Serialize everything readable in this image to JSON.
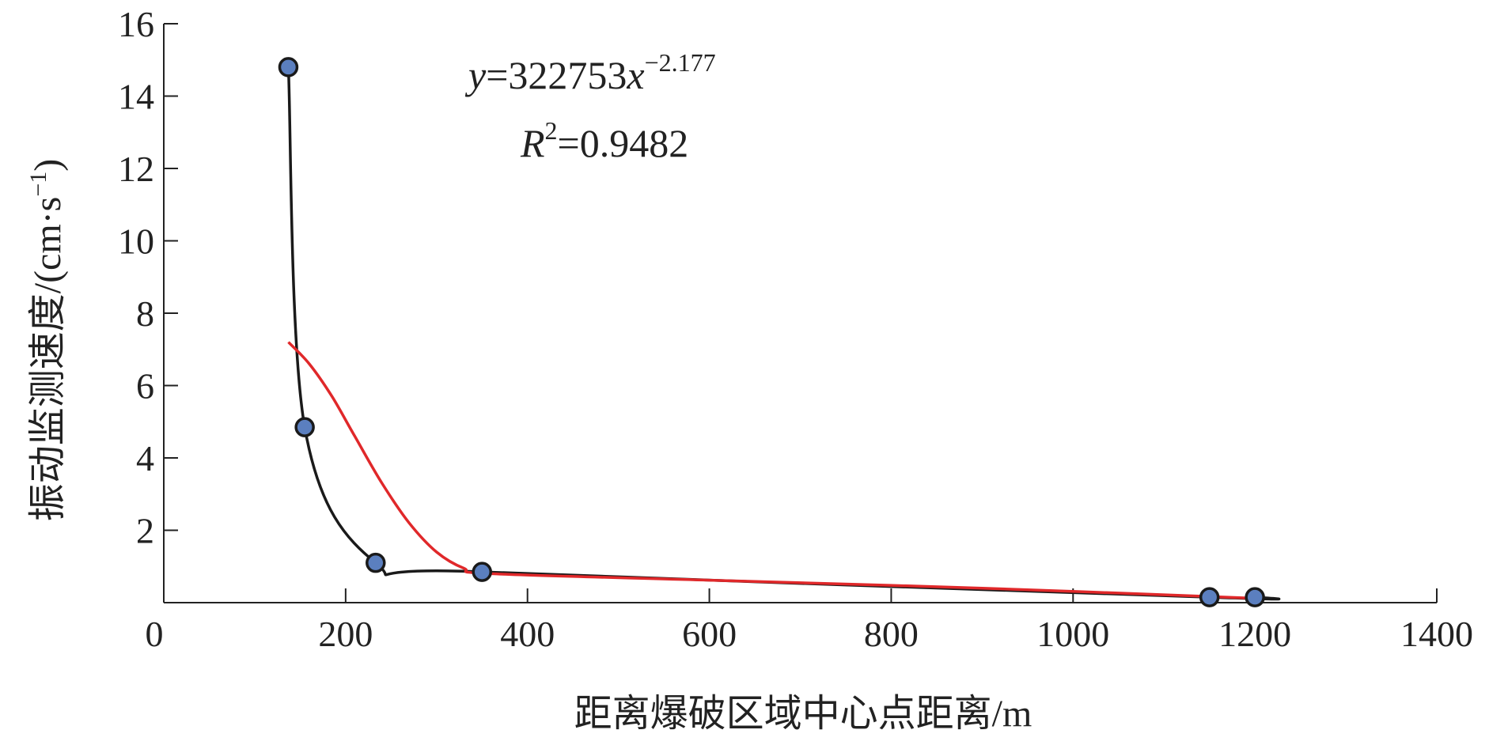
{
  "chart_data": {
    "type": "scatter",
    "xlabel": "距离爆破区域中心点距离/m",
    "ylabel_main": "振动监测速度/(cm·s",
    "ylabel_exp": "−1",
    "ylabel_close": ")",
    "xlim": [
      0,
      1400
    ],
    "ylim": [
      0,
      16
    ],
    "x_ticks": [
      0,
      200,
      400,
      600,
      800,
      1000,
      1200,
      1400
    ],
    "y_ticks": [
      2,
      4,
      6,
      8,
      10,
      12,
      14,
      16
    ],
    "x_tick_labels": [
      "0",
      "200",
      "400",
      "600",
      "800",
      "1000",
      "1200",
      "1400"
    ],
    "y_tick_labels": [
      "2",
      "4",
      "6",
      "8",
      "10",
      "12",
      "14",
      "16"
    ],
    "series": [
      {
        "style": "points-with-smooth-line",
        "points": [
          {
            "x": 137,
            "y": 14.8
          },
          {
            "x": 155,
            "y": 4.85
          },
          {
            "x": 233,
            "y": 1.1
          },
          {
            "x": 350,
            "y": 0.85
          },
          {
            "x": 1150,
            "y": 0.15
          },
          {
            "x": 1200,
            "y": 0.15
          }
        ]
      },
      {
        "style": "fit-line",
        "points": [
          {
            "x": 137,
            "y": 7.2
          },
          {
            "x": 160,
            "y": 6.6
          },
          {
            "x": 185,
            "y": 5.7
          },
          {
            "x": 210,
            "y": 4.6
          },
          {
            "x": 240,
            "y": 3.3
          },
          {
            "x": 270,
            "y": 2.2
          },
          {
            "x": 300,
            "y": 1.4
          },
          {
            "x": 330,
            "y": 0.95
          },
          {
            "x": 360,
            "y": 0.8
          },
          {
            "x": 600,
            "y": 0.62
          },
          {
            "x": 900,
            "y": 0.4
          },
          {
            "x": 1200,
            "y": 0.12
          }
        ]
      }
    ],
    "annotation": {
      "eq_y": "y",
      "eq_mid": "=322753",
      "eq_x": "x",
      "eq_exp": "−2.177",
      "r2_R": "R",
      "r2_exp": "2",
      "r2_val": "=0.9482"
    },
    "colors": {
      "marker_fill": "#5b7fbf",
      "marker_stroke": "#1a1a1a",
      "data_line": "#1a1a1a",
      "fit_line": "#e0282a",
      "axis": "#222222"
    }
  }
}
